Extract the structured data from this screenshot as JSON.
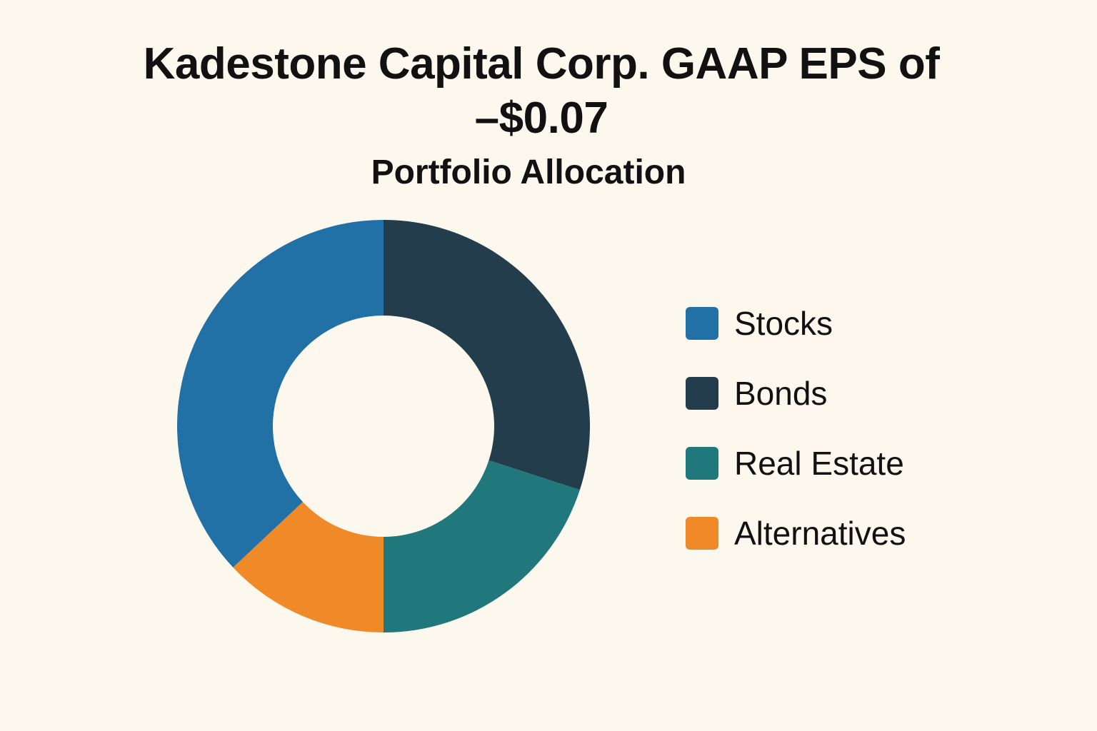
{
  "chart_data": {
    "type": "pie",
    "title_lines": [
      "Kadestone Capital Corp. GAAP EPS of",
      "–$0.07"
    ],
    "subtitle": "Portfolio Allocation",
    "donut": true,
    "legend_position": "right",
    "categories": [
      "Stocks",
      "Bonds",
      "Real Estate",
      "Alternatives"
    ],
    "values": [
      37,
      30,
      20,
      13
    ],
    "colors": [
      "#2170a6",
      "#233d4d",
      "#20777c",
      "#f08a28"
    ],
    "start_category": "Bonds",
    "start_angle_deg": 0,
    "order_clockwise": [
      "Bonds",
      "Real Estate",
      "Alternatives",
      "Stocks"
    ]
  }
}
